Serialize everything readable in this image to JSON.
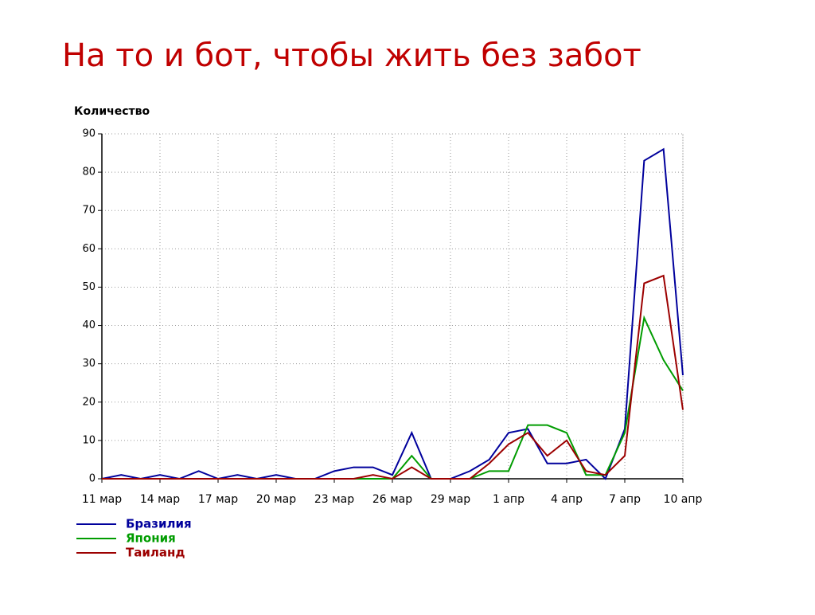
{
  "chart_data": {
    "type": "line",
    "title": "На то и бот, чтобы жить без забот",
    "y_label": "Количество",
    "categories": [
      "11 мар",
      null,
      null,
      "14 мар",
      null,
      null,
      "17 мар",
      null,
      null,
      "20 мар",
      null,
      null,
      "23 мар",
      null,
      null,
      "26 мар",
      null,
      null,
      "29 мар",
      null,
      null,
      "1 апр",
      null,
      null,
      "4 апр",
      null,
      null,
      "7 апр",
      null,
      null,
      "10 апр"
    ],
    "series": [
      {
        "name": "Бразилия",
        "color": "#00009c",
        "values": [
          0,
          1,
          0,
          1,
          0,
          2,
          0,
          1,
          0,
          1,
          0,
          0,
          2,
          3,
          3,
          1,
          12,
          0,
          0,
          2,
          5,
          12,
          13,
          4,
          4,
          5,
          0,
          13,
          83,
          86,
          27
        ]
      },
      {
        "name": "Япония",
        "color": "#009c00",
        "values": [
          0,
          0,
          0,
          0,
          0,
          0,
          0,
          0,
          0,
          0,
          0,
          0,
          0,
          0,
          0,
          0,
          6,
          0,
          0,
          0,
          2,
          2,
          14,
          14,
          12,
          1,
          1,
          12,
          42,
          31,
          23
        ]
      },
      {
        "name": "Таиланд",
        "color": "#9c0000",
        "values": [
          0,
          0,
          0,
          0,
          0,
          0,
          0,
          0,
          0,
          0,
          0,
          0,
          0,
          0,
          1,
          0,
          3,
          0,
          0,
          0,
          4,
          9,
          12,
          6,
          10,
          2,
          1,
          6,
          51,
          53,
          18
        ]
      }
    ],
    "ylim": [
      0,
      90
    ],
    "yticks": [
      0,
      10,
      20,
      30,
      40,
      50,
      60,
      70,
      80,
      90
    ],
    "grid": true,
    "legend": "bottom-left"
  }
}
